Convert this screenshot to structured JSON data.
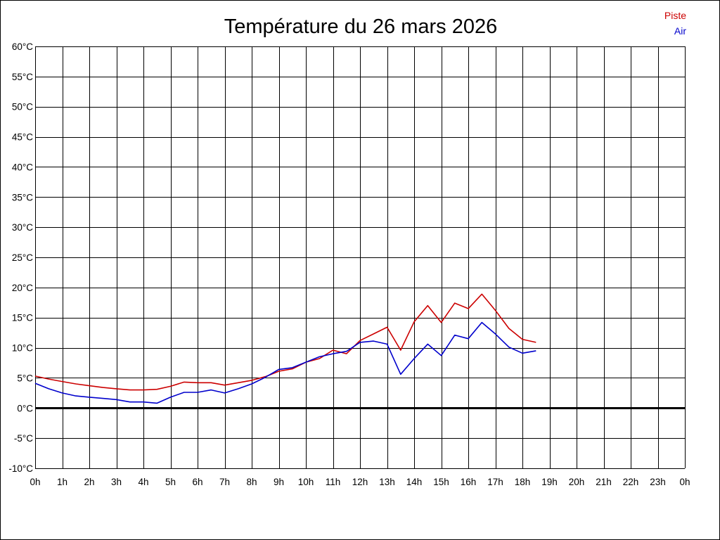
{
  "chart_data": {
    "type": "line",
    "title": "Température du 26 mars 2026",
    "xlabel": "",
    "ylabel": "",
    "x_unit": "hours",
    "xlim": [
      0,
      24
    ],
    "ylim": [
      -10,
      60
    ],
    "grid": true,
    "legend_position": "top-right",
    "x_tick_labels": [
      "0h",
      "1h",
      "2h",
      "3h",
      "4h",
      "5h",
      "6h",
      "7h",
      "8h",
      "9h",
      "10h",
      "11h",
      "12h",
      "13h",
      "14h",
      "15h",
      "16h",
      "17h",
      "18h",
      "19h",
      "20h",
      "21h",
      "22h",
      "23h",
      "0h"
    ],
    "y_ticks": [
      -10,
      -5,
      0,
      5,
      10,
      15,
      20,
      25,
      30,
      35,
      40,
      45,
      50,
      55,
      60
    ],
    "y_tick_labels": [
      "-10°C",
      "-5°C",
      "0°C",
      "5°C",
      "10°C",
      "15°C",
      "20°C",
      "25°C",
      "30°C",
      "35°C",
      "40°C",
      "45°C",
      "50°C",
      "55°C",
      "60°C"
    ],
    "zero_line": 0,
    "x": [
      0,
      0.5,
      1,
      1.5,
      2,
      2.5,
      3,
      3.5,
      4,
      4.5,
      5,
      5.5,
      6,
      6.5,
      7,
      7.5,
      8,
      8.5,
      9,
      9.5,
      10,
      10.5,
      11,
      11.5,
      12,
      12.5,
      13,
      13.5,
      14,
      14.5,
      15,
      15.5,
      16,
      16.5,
      17,
      17.5,
      18,
      18.5
    ],
    "series": [
      {
        "name": "Piste",
        "color": "#cc0000",
        "values": [
          5.3,
          4.8,
          4.4,
          4.0,
          3.7,
          3.4,
          3.2,
          3.0,
          3.0,
          3.1,
          3.6,
          4.3,
          4.2,
          4.2,
          3.8,
          4.2,
          4.6,
          5.2,
          6.1,
          6.5,
          7.6,
          8.2,
          9.6,
          9.0,
          11.2,
          12.3,
          13.4,
          9.6,
          14.3,
          17.0,
          14.2,
          17.4,
          16.5,
          18.9,
          16.2,
          13.2,
          11.4,
          10.9
        ]
      },
      {
        "name": "Air",
        "color": "#0000cc",
        "values": [
          4.1,
          3.2,
          2.5,
          2.0,
          1.8,
          1.6,
          1.4,
          1.0,
          1.0,
          0.8,
          1.8,
          2.6,
          2.6,
          3.0,
          2.5,
          3.2,
          4.0,
          5.1,
          6.4,
          6.7,
          7.6,
          8.5,
          9.0,
          9.4,
          10.9,
          11.1,
          10.6,
          5.6,
          8.2,
          10.6,
          8.7,
          12.1,
          11.5,
          14.2,
          12.3,
          10.1,
          9.1,
          9.5
        ]
      }
    ]
  }
}
